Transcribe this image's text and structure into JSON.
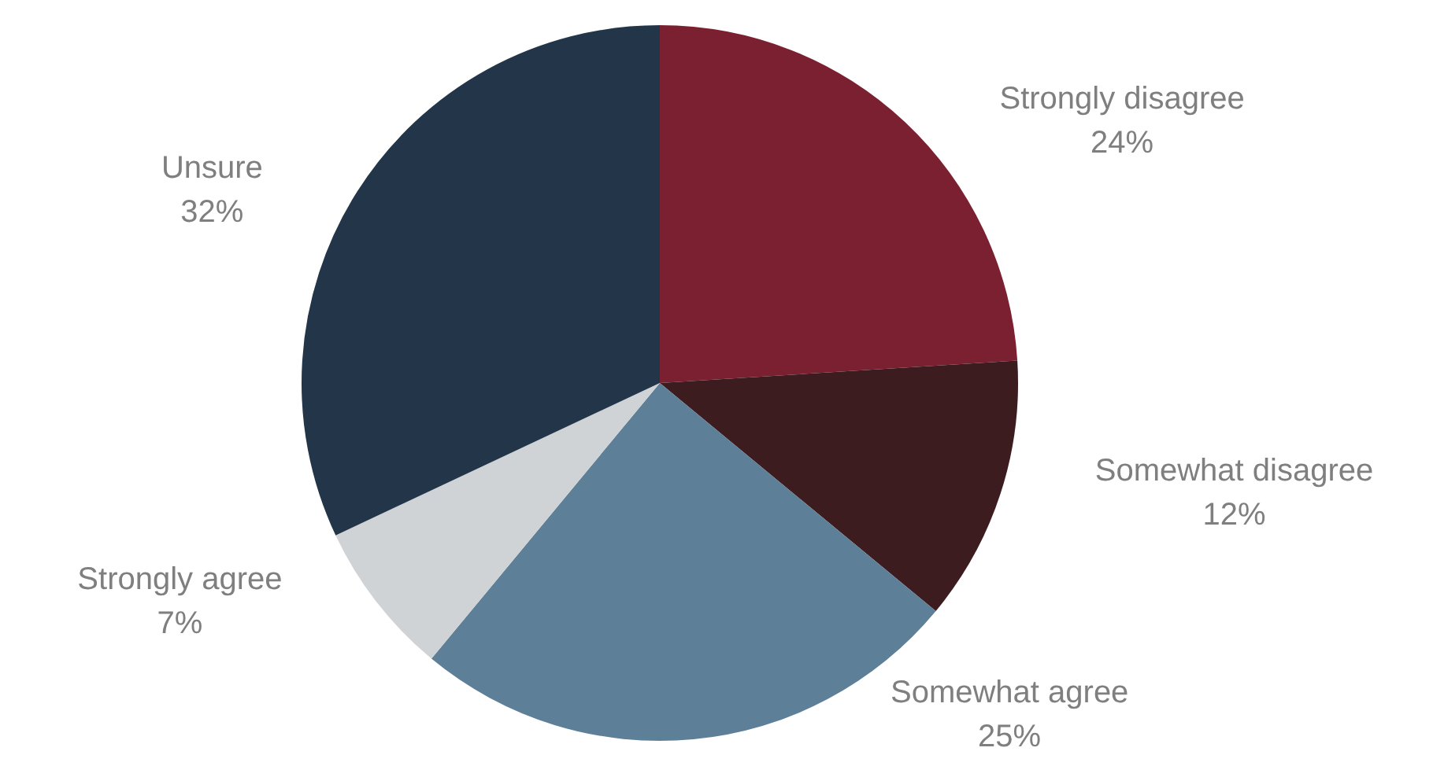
{
  "chart_data": {
    "type": "pie",
    "categories": [
      "Strongly disagree",
      "Somewhat disagree",
      "Somewhat agree",
      "Strongly agree",
      "Unsure"
    ],
    "values": [
      24,
      12,
      25,
      7,
      32
    ],
    "value_labels": [
      "24%",
      "12%",
      "25%",
      "7%",
      "32%"
    ],
    "colors": [
      "#7a2030",
      "#3d1c20",
      "#5e7f98",
      "#cfd3d5",
      "#223549"
    ],
    "legend": false
  }
}
